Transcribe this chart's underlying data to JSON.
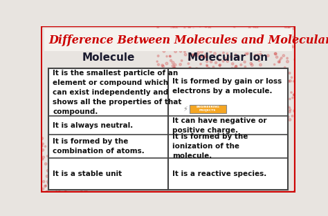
{
  "title": "Difference Between Molecules and Molecular Ions",
  "col1_header": "Molecule",
  "col2_header": "Molecular Ion",
  "rows": [
    {
      "col1": "It is the smallest particle of an\nelement or compound which\ncan exist independently and\nshows all the properties of that\ncompound.",
      "col2": "It is formed by gain or loss\nelectrons by a molecule."
    },
    {
      "col1": "It is always neutral.",
      "col2": "It can have negative or\npositive charge."
    },
    {
      "col1": "It is formed by the\ncombination of atoms.",
      "col2": "It is formed by the\nionization of the\nmolecule."
    },
    {
      "col1": "It is a stable unit",
      "col2": "It is a reactive species."
    }
  ],
  "bg_color": "#e8e4e0",
  "title_color": "#cc0000",
  "header_color": "#1a1a2e",
  "cell_text_color": "#111111",
  "table_bg": "#ffffff",
  "border_color": "#444444",
  "outer_border_color": "#cc0000",
  "dot_color": "#cc0000",
  "title_area_bg": "#f5f2ee"
}
